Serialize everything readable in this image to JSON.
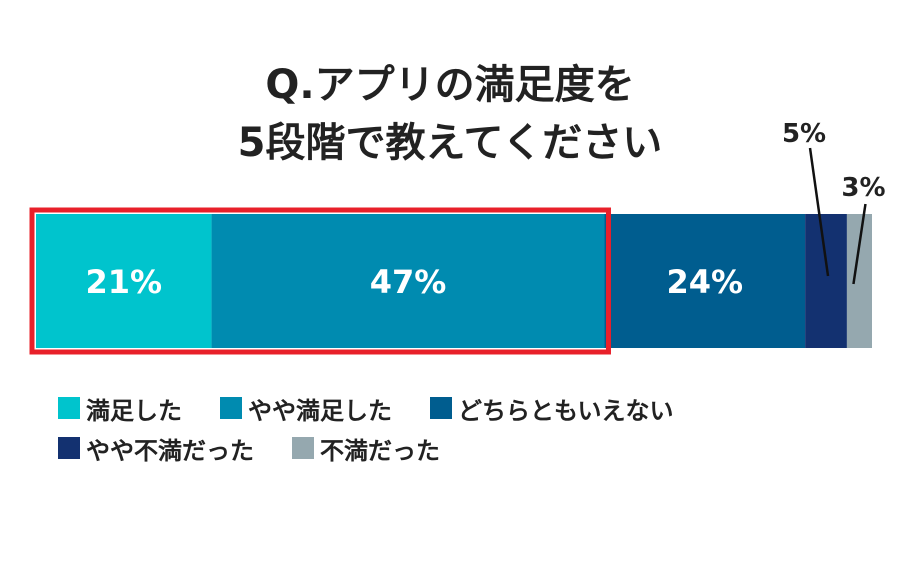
{
  "chart_data": {
    "type": "bar",
    "orientation": "horizontal-stacked-100",
    "title_lines": [
      "Q.アプリの満足度を",
      "5段階で教えてください"
    ],
    "series": [
      {
        "name": "満足した",
        "value": 21,
        "label": "21%",
        "color": "#00C4CD"
      },
      {
        "name": "やや満足した",
        "value": 47,
        "label": "47%",
        "color": "#008BB0"
      },
      {
        "name": "どちらともいえない",
        "value": 24,
        "label": "24%",
        "color": "#005D8F"
      },
      {
        "name": "やや不満だった",
        "value": 5,
        "label": "5%",
        "color": "#133170"
      },
      {
        "name": "不満だった",
        "value": 3,
        "label": "3%",
        "color": "#95A8AF"
      }
    ],
    "highlight": {
      "series": [
        "満足した",
        "やや満足した"
      ],
      "color": "#E8202A"
    },
    "legend_placement": "bottom"
  }
}
